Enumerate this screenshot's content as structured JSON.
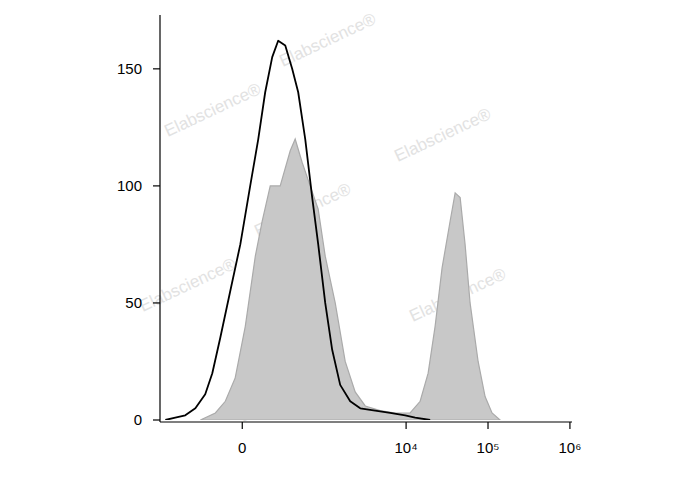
{
  "chart_data": {
    "type": "line",
    "log": "x",
    "annotations": [
      "Elabscience®"
    ],
    "xlim": [
      -1000,
      1060000
    ],
    "xticks": [
      0,
      {
        "value": 10000,
        "label": "10⁴"
      },
      {
        "value": 100000,
        "label": "10⁵"
      },
      {
        "value": 1000000,
        "label": "10⁶"
      }
    ],
    "ylim": [
      0,
      173
    ],
    "yticks": [
      0,
      50,
      100,
      150
    ],
    "series": [
      {
        "type": "area",
        "color": "#c8c8c8",
        "x": [
          -294,
          -166,
          -99,
          -40,
          17,
          75,
          118,
          174,
          256,
          359,
          420,
          520,
          660,
          834,
          1020,
          1356,
          1800,
          2386,
          3170,
          4820,
          7350,
          11200,
          14840,
          18580,
          22600,
          27500,
          34500,
          39700,
          45700,
          52500,
          60400,
          75700,
          92100,
          112000,
          140400
        ],
        "values": [
          0,
          3,
          8,
          18,
          40,
          70,
          85,
          100,
          100,
          115,
          120,
          110,
          100,
          90,
          70,
          50,
          25,
          12,
          6,
          4,
          3,
          3,
          8,
          20,
          40,
          65,
          85,
          97,
          95,
          75,
          50,
          25,
          10,
          3,
          0
        ]
      },
      {
        "type": "line",
        "color": "#000000",
        "x": [
          -858,
          -642,
          -476,
          -347,
          -248,
          -189,
          -132,
          -69,
          -11,
          45,
          93,
          138,
          189,
          238,
          305,
          382,
          461,
          570,
          700,
          834,
          1020,
          1244,
          1562,
          2074,
          2750,
          4190,
          6390,
          9740,
          12900,
          19660
        ],
        "values": [
          0,
          1,
          2,
          5,
          11,
          20,
          35,
          55,
          75,
          100,
          120,
          140,
          155,
          162,
          160,
          150,
          140,
          120,
          95,
          75,
          50,
          30,
          15,
          8,
          5,
          4,
          3,
          2,
          1,
          0
        ]
      }
    ]
  }
}
